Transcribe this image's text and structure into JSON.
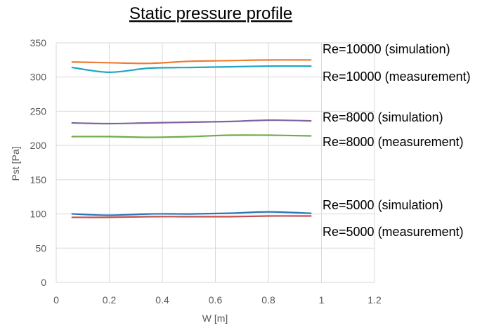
{
  "chart_data": {
    "type": "line",
    "title": "Static pressure profile",
    "xlabel": "W [m]",
    "ylabel": "Pst [Pa]",
    "xlim": [
      0,
      1.2
    ],
    "ylim": [
      0,
      350
    ],
    "xticks": [
      "0",
      "0.2",
      "0.4",
      "0.6",
      "0.8",
      "1",
      "1.2"
    ],
    "yticks": [
      "0",
      "50",
      "100",
      "150",
      "200",
      "250",
      "300",
      "350"
    ],
    "grid": "vertical and horizontal",
    "legend_placement": "right",
    "x": [
      0.06,
      0.2,
      0.35,
      0.5,
      0.65,
      0.8,
      0.96
    ],
    "series": [
      {
        "name": "Re=10000 (simulation)",
        "color": "#ED7D31",
        "values": [
          322,
          321,
          320,
          323,
          324,
          325,
          325
        ]
      },
      {
        "name": "Re=10000 (measurement)",
        "color": "#1FA7BF",
        "values": [
          314,
          307,
          313,
          314,
          315,
          316,
          316
        ]
      },
      {
        "name": "Re=8000 (simulation)",
        "color": "#8064A2",
        "values": [
          233,
          232,
          233,
          234,
          235,
          237,
          236
        ]
      },
      {
        "name": "Re=8000 (measurement)",
        "color": "#70AD47",
        "values": [
          213,
          213,
          212,
          213,
          215,
          215,
          214
        ]
      },
      {
        "name": "Re=5000 (simulation)",
        "color": "#2E75B6",
        "values": [
          100,
          98,
          100,
          100,
          101,
          103,
          101
        ]
      },
      {
        "name": "Re=5000 (measurement)",
        "color": "#C0504D",
        "values": [
          95,
          95,
          96,
          96,
          96,
          97,
          97
        ]
      }
    ]
  }
}
